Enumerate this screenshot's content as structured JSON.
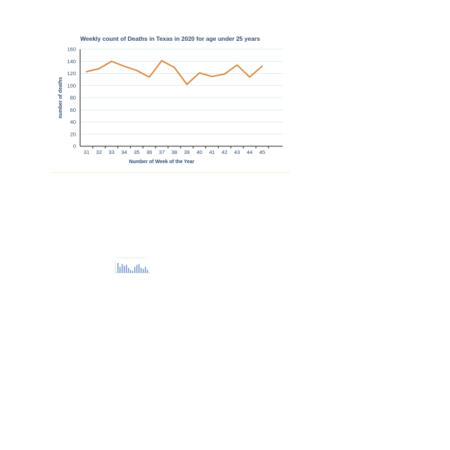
{
  "chart_data": {
    "type": "line",
    "title": "Weekly count of Deaths in Texas in 2020 for age under 25 years",
    "xlabel": "Number of Week of the Year",
    "ylabel": "number of deaths",
    "ylim": [
      0,
      160
    ],
    "yticks": [
      0,
      20,
      40,
      60,
      80,
      100,
      120,
      140,
      160
    ],
    "categories": [
      "31",
      "32",
      "33",
      "34",
      "35",
      "36",
      "37",
      "38",
      "39",
      "40",
      "41",
      "42",
      "43",
      "44",
      "45"
    ],
    "series": [
      {
        "values": [
          123,
          128,
          140,
          132,
          125,
          114,
          141,
          130,
          102,
          121,
          115,
          119,
          134,
          114,
          132
        ]
      }
    ],
    "grid": true,
    "legend": "none",
    "colors": {
      "line": "#d7873e",
      "grid": "#d6e6ec",
      "text": "#2e4a70"
    }
  },
  "thumbnail": {
    "bars": [
      20,
      12,
      18,
      14,
      16,
      10,
      6,
      4,
      12,
      16,
      18,
      10,
      8,
      12,
      6
    ]
  }
}
